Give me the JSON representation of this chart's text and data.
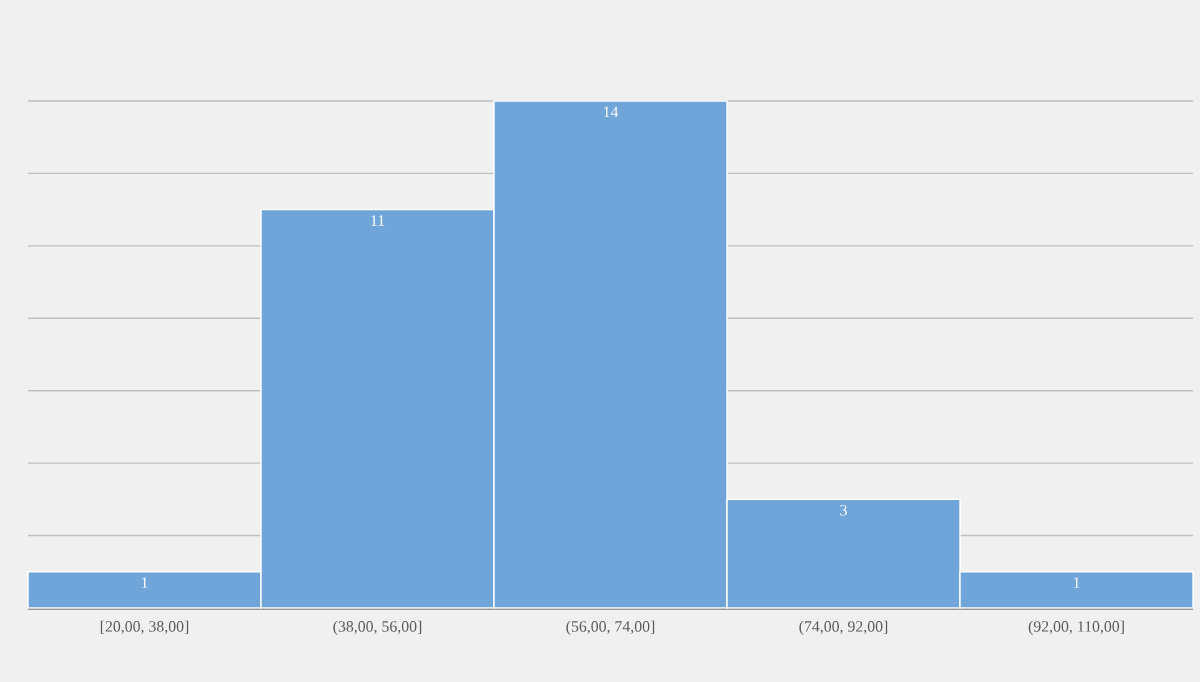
{
  "chart_data": {
    "type": "bar",
    "categories": [
      "[20,00, 38,00]",
      "(38,00, 56,00]",
      "(56,00, 74,00]",
      "(74,00, 92,00]",
      "(92,00, 110,00]"
    ],
    "values": [
      1,
      11,
      14,
      3,
      1
    ],
    "color": "#6fa5d8",
    "grid": "y",
    "data_labels": true
  }
}
